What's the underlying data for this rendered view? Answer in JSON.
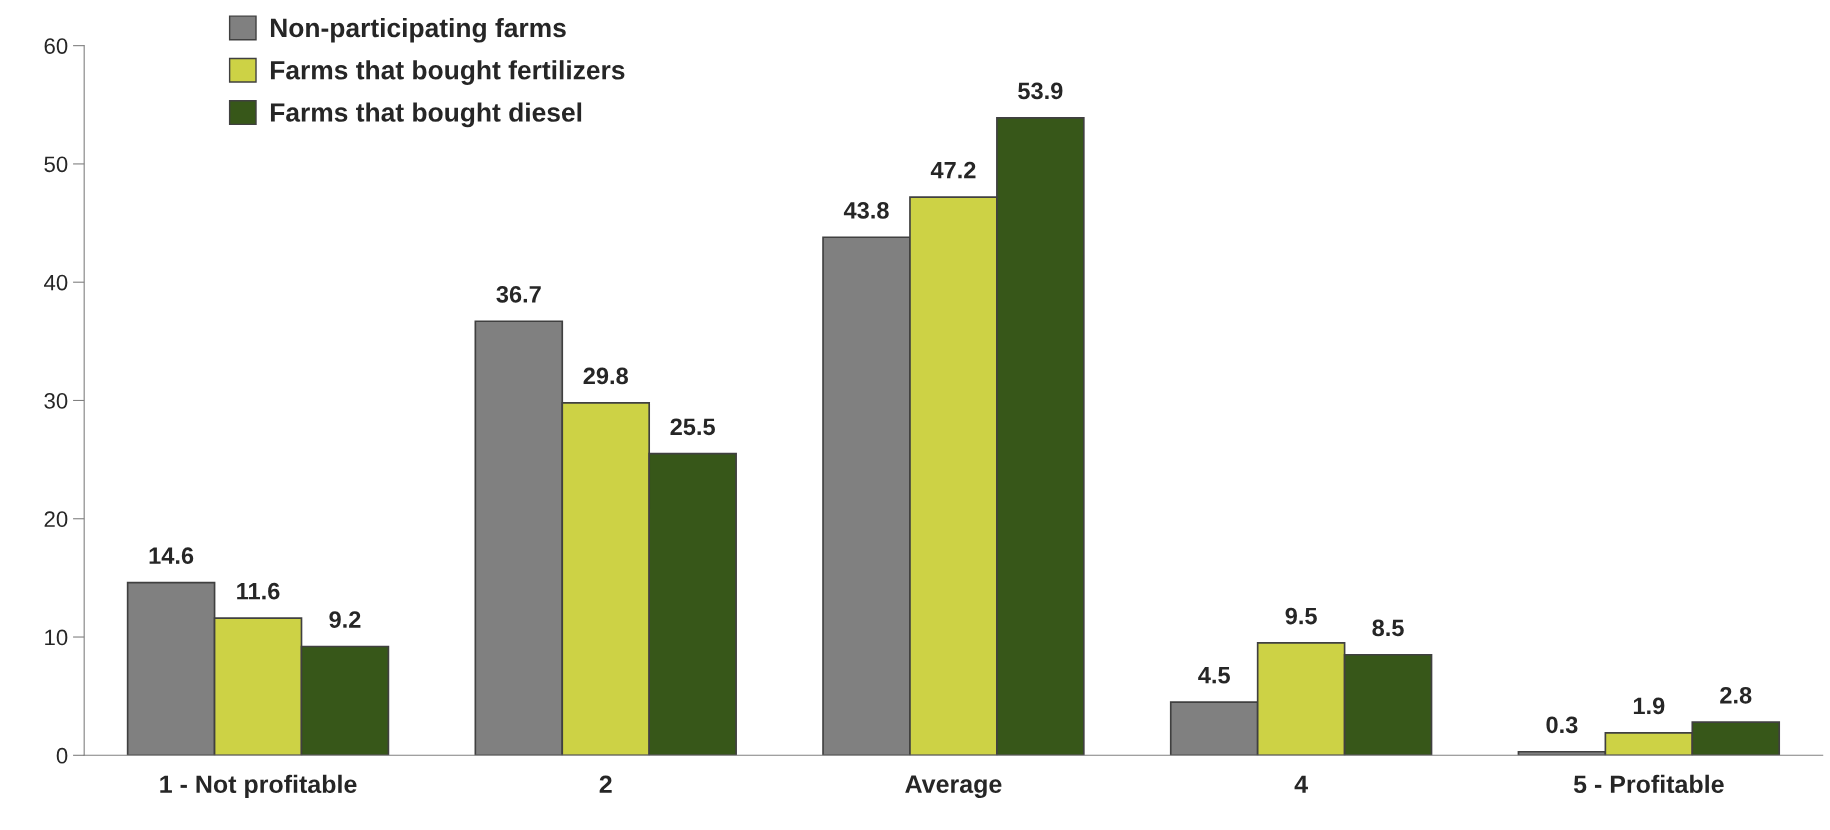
{
  "chart_data": {
    "type": "bar",
    "categories": [
      "1 - Not profitable",
      "2",
      "Average",
      "4",
      "5 - Profitable"
    ],
    "series": [
      {
        "name": "Non-participating farms",
        "color": "#808080",
        "values": [
          14.6,
          36.7,
          43.8,
          4.5,
          0.3
        ]
      },
      {
        "name": "Farms that bought fertilizers",
        "color": "#cdd245",
        "values": [
          11.6,
          29.8,
          47.2,
          9.5,
          1.9
        ]
      },
      {
        "name": "Farms that bought diesel",
        "color": "#375719",
        "values": [
          9.2,
          25.5,
          53.9,
          8.5,
          2.8
        ]
      }
    ],
    "ylim": [
      0,
      60
    ],
    "yticks": [
      0,
      10,
      20,
      30,
      40,
      50,
      60
    ],
    "data_labels": true,
    "grid": false,
    "legend": "top left"
  }
}
